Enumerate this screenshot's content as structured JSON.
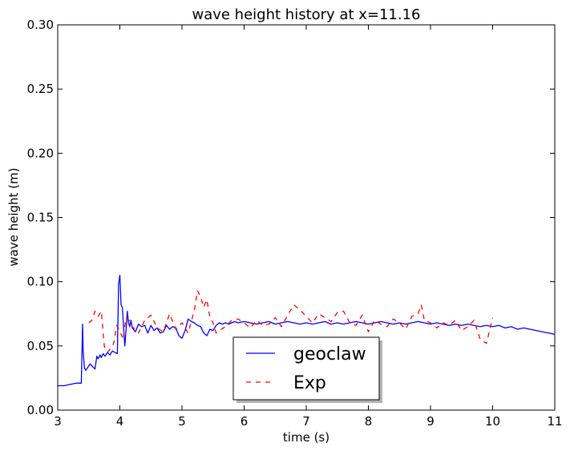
{
  "chart_data": {
    "type": "line",
    "title": "wave height history at x=11.16",
    "xlabel": "time (s)",
    "ylabel": "wave height (m)",
    "xlim": [
      3,
      11
    ],
    "ylim": [
      0.0,
      0.3
    ],
    "xticks": [
      3,
      4,
      5,
      6,
      7,
      8,
      9,
      10,
      11
    ],
    "xtick_labels": [
      "3",
      "4",
      "5",
      "6",
      "7",
      "8",
      "9",
      "10",
      "11"
    ],
    "yticks": [
      0.0,
      0.05,
      0.1,
      0.15,
      0.2,
      0.25,
      0.3
    ],
    "ytick_labels": [
      "0.00",
      "0.05",
      "0.10",
      "0.15",
      "0.20",
      "0.25",
      "0.30"
    ],
    "grid": false,
    "legend_position": "bottom-center",
    "series": [
      {
        "name": "geoclaw",
        "color": "#0000ff",
        "style": "solid",
        "x": [
          3.0,
          3.1,
          3.2,
          3.3,
          3.38,
          3.4,
          3.41,
          3.43,
          3.45,
          3.48,
          3.52,
          3.56,
          3.6,
          3.63,
          3.65,
          3.68,
          3.7,
          3.73,
          3.76,
          3.8,
          3.84,
          3.88,
          3.92,
          3.96,
          3.98,
          4.0,
          4.02,
          4.04,
          4.06,
          4.08,
          4.1,
          4.12,
          4.14,
          4.16,
          4.18,
          4.2,
          4.25,
          4.3,
          4.35,
          4.4,
          4.45,
          4.5,
          4.55,
          4.6,
          4.65,
          4.7,
          4.75,
          4.8,
          4.85,
          4.9,
          4.95,
          5.0,
          5.05,
          5.1,
          5.15,
          5.2,
          5.25,
          5.3,
          5.35,
          5.4,
          5.45,
          5.5,
          5.55,
          5.6,
          5.65,
          5.7,
          5.75,
          5.8,
          5.85,
          5.9,
          6.0,
          6.1,
          6.2,
          6.3,
          6.4,
          6.5,
          6.6,
          6.7,
          6.8,
          6.9,
          7.0,
          7.1,
          7.2,
          7.3,
          7.4,
          7.5,
          7.6,
          7.7,
          7.8,
          7.9,
          8.0,
          8.1,
          8.2,
          8.3,
          8.4,
          8.5,
          8.6,
          8.7,
          8.8,
          8.9,
          9.0,
          9.1,
          9.2,
          9.3,
          9.4,
          9.5,
          9.6,
          9.7,
          9.8,
          9.9,
          10.0,
          10.1,
          10.2,
          10.3,
          10.4,
          10.5,
          10.6,
          10.7,
          10.8,
          10.9,
          11.0
        ],
        "y": [
          0.019,
          0.019,
          0.02,
          0.021,
          0.021,
          0.067,
          0.045,
          0.033,
          0.031,
          0.033,
          0.036,
          0.034,
          0.032,
          0.042,
          0.04,
          0.043,
          0.041,
          0.044,
          0.042,
          0.045,
          0.043,
          0.046,
          0.045,
          0.044,
          0.098,
          0.105,
          0.082,
          0.08,
          0.065,
          0.05,
          0.062,
          0.077,
          0.068,
          0.065,
          0.07,
          0.064,
          0.061,
          0.067,
          0.065,
          0.066,
          0.06,
          0.066,
          0.062,
          0.064,
          0.06,
          0.061,
          0.066,
          0.063,
          0.065,
          0.064,
          0.058,
          0.056,
          0.062,
          0.071,
          0.069,
          0.068,
          0.066,
          0.065,
          0.06,
          0.058,
          0.063,
          0.062,
          0.066,
          0.068,
          0.067,
          0.068,
          0.067,
          0.068,
          0.069,
          0.068,
          0.069,
          0.068,
          0.067,
          0.068,
          0.069,
          0.067,
          0.068,
          0.069,
          0.068,
          0.067,
          0.068,
          0.067,
          0.068,
          0.069,
          0.067,
          0.068,
          0.067,
          0.068,
          0.069,
          0.068,
          0.067,
          0.068,
          0.069,
          0.068,
          0.067,
          0.068,
          0.067,
          0.068,
          0.069,
          0.068,
          0.067,
          0.068,
          0.067,
          0.066,
          0.067,
          0.066,
          0.067,
          0.066,
          0.065,
          0.066,
          0.065,
          0.066,
          0.064,
          0.065,
          0.063,
          0.064,
          0.063,
          0.062,
          0.061,
          0.06,
          0.059
        ]
      },
      {
        "name": "Exp",
        "color": "#ff0000",
        "style": "dashed",
        "x": [
          3.5,
          3.55,
          3.6,
          3.65,
          3.7,
          3.75,
          3.8,
          3.85,
          3.9,
          3.95,
          4.0,
          4.05,
          4.1,
          4.15,
          4.2,
          4.3,
          4.4,
          4.5,
          4.6,
          4.7,
          4.8,
          4.9,
          5.0,
          5.1,
          5.2,
          5.25,
          5.3,
          5.35,
          5.4,
          5.45,
          5.5,
          5.55,
          5.6,
          5.7,
          5.8,
          5.9,
          6.0,
          6.1,
          6.2,
          6.3,
          6.4,
          6.5,
          6.6,
          6.7,
          6.8,
          6.9,
          7.0,
          7.1,
          7.2,
          7.3,
          7.4,
          7.5,
          7.6,
          7.7,
          7.8,
          7.9,
          8.0,
          8.1,
          8.2,
          8.3,
          8.4,
          8.5,
          8.6,
          8.7,
          8.8,
          8.85,
          8.9,
          9.0,
          9.1,
          9.2,
          9.3,
          9.4,
          9.5,
          9.6,
          9.7,
          9.8,
          9.9,
          10.0
        ],
        "y": [
          0.068,
          0.07,
          0.077,
          0.073,
          0.077,
          0.05,
          0.045,
          0.048,
          0.052,
          0.066,
          0.062,
          0.055,
          0.072,
          0.07,
          0.065,
          0.06,
          0.07,
          0.074,
          0.064,
          0.061,
          0.075,
          0.063,
          0.068,
          0.06,
          0.078,
          0.093,
          0.088,
          0.08,
          0.086,
          0.072,
          0.068,
          0.06,
          0.062,
          0.065,
          0.07,
          0.071,
          0.068,
          0.064,
          0.07,
          0.066,
          0.067,
          0.072,
          0.065,
          0.074,
          0.082,
          0.078,
          0.073,
          0.068,
          0.075,
          0.072,
          0.069,
          0.076,
          0.077,
          0.068,
          0.066,
          0.074,
          0.061,
          0.07,
          0.067,
          0.065,
          0.071,
          0.068,
          0.063,
          0.073,
          0.075,
          0.082,
          0.07,
          0.068,
          0.064,
          0.068,
          0.066,
          0.07,
          0.062,
          0.065,
          0.07,
          0.055,
          0.052,
          0.072
        ]
      }
    ]
  }
}
